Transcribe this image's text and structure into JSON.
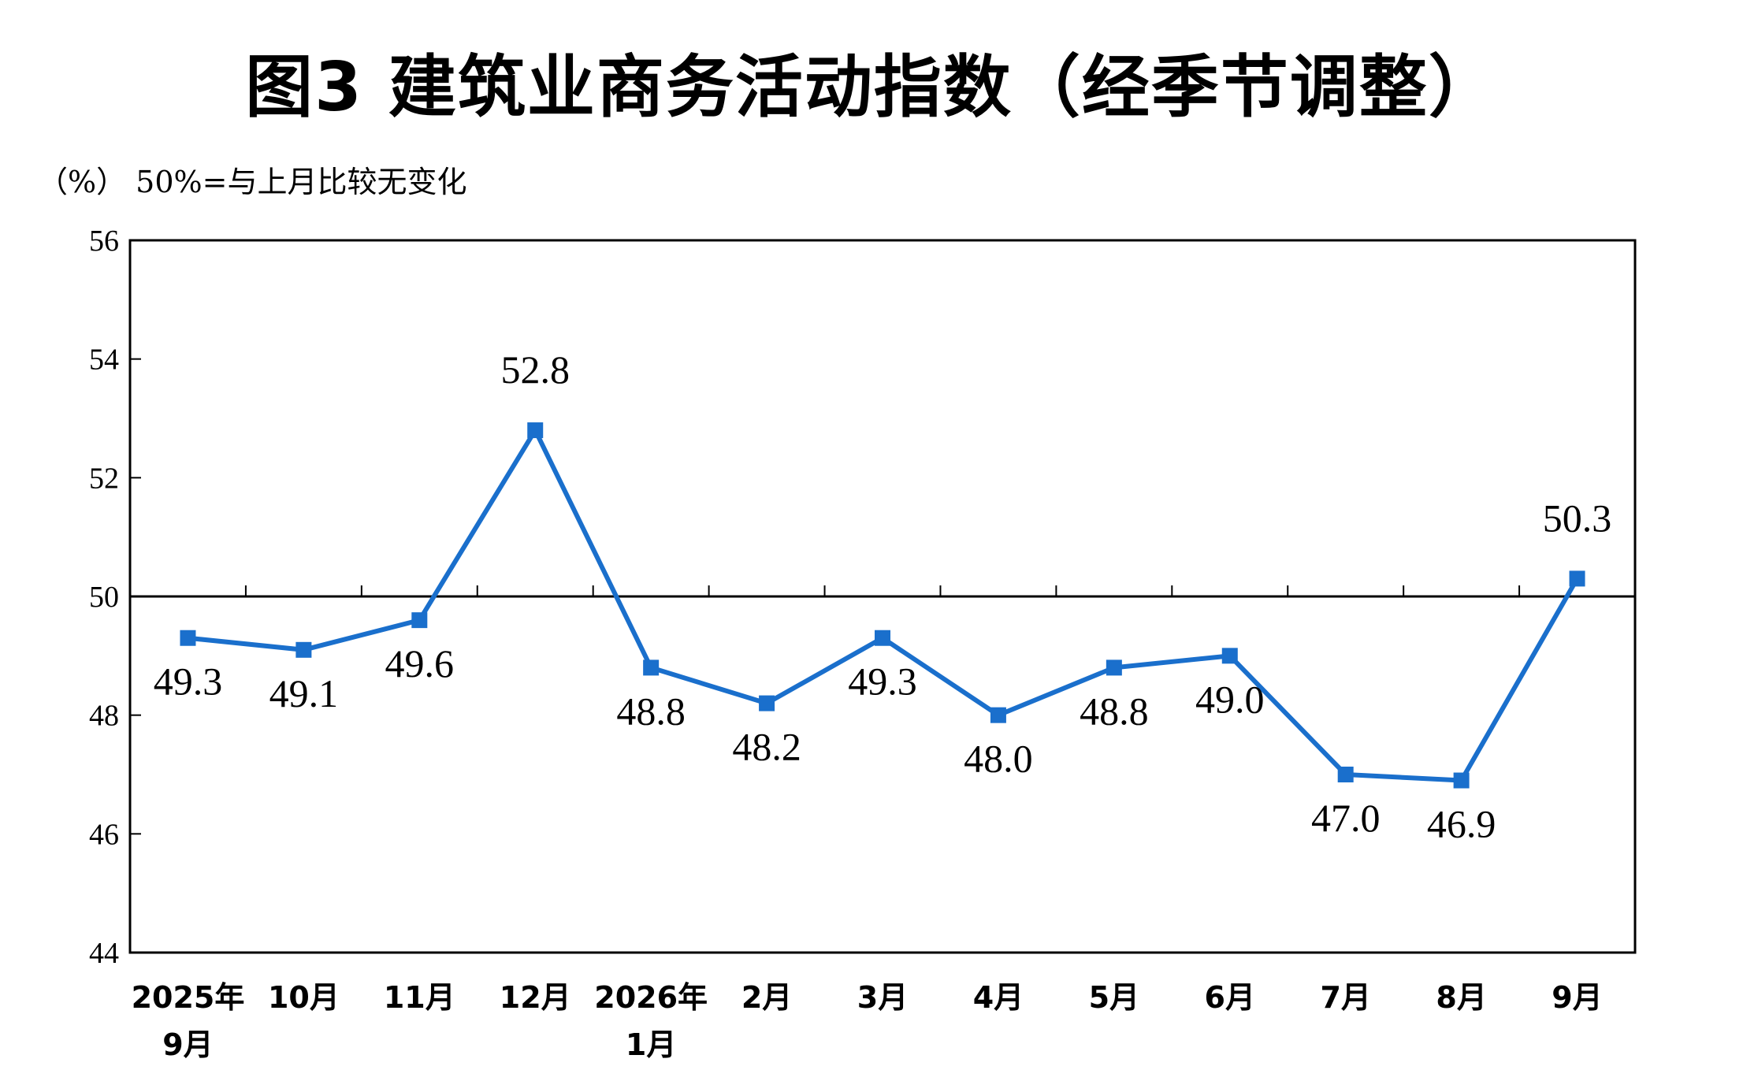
{
  "title": "图3  建筑业商务活动指数（经季节调整）",
  "unit_note": "（%）  50%=与上月比较无变化",
  "colors": {
    "series": "#1a6fcc",
    "axis": "#000000"
  },
  "chart_data": {
    "type": "line",
    "title": "图3  建筑业商务活动指数（经季节调整）",
    "ylabel": "（%）",
    "annotation": "50%=与上月比较无变化",
    "ylim": [
      44,
      56
    ],
    "yticks": [
      44,
      46,
      48,
      50,
      52,
      54,
      56
    ],
    "reference_line": 50,
    "grid": false,
    "legend": "none",
    "categories": [
      [
        "2025年",
        "9月"
      ],
      [
        "10月"
      ],
      [
        "11月"
      ],
      [
        "12月"
      ],
      [
        "2026年",
        "1月"
      ],
      [
        "2月"
      ],
      [
        "3月"
      ],
      [
        "4月"
      ],
      [
        "5月"
      ],
      [
        "6月"
      ],
      [
        "7月"
      ],
      [
        "8月"
      ],
      [
        "9月"
      ]
    ],
    "series": [
      {
        "values": [
          49.3,
          49.1,
          49.6,
          52.8,
          48.8,
          48.2,
          49.3,
          48.0,
          48.8,
          49.0,
          47.0,
          46.9,
          50.3
        ],
        "labels": [
          "49.3",
          "49.1",
          "49.6",
          "52.8",
          "48.8",
          "48.2",
          "49.3",
          "48.0",
          "48.8",
          "49.0",
          "47.0",
          "46.9",
          "50.3"
        ],
        "label_position": [
          "below",
          "below",
          "below",
          "above",
          "below",
          "below",
          "below",
          "below",
          "below",
          "below",
          "below",
          "below",
          "above"
        ]
      }
    ]
  }
}
